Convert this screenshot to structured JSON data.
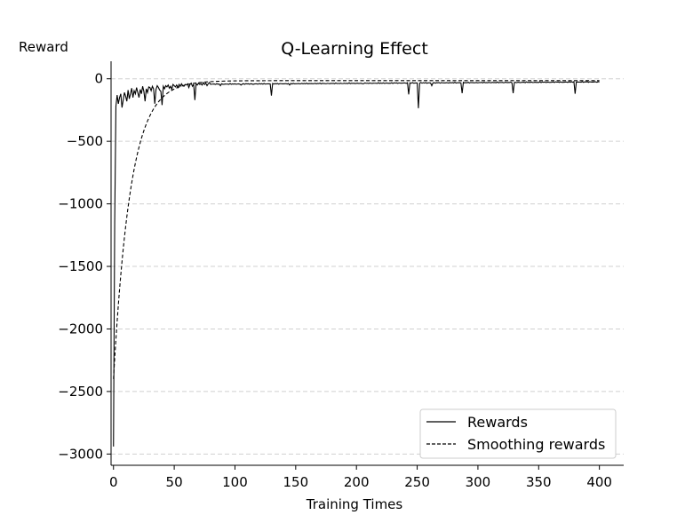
{
  "chart_data": {
    "type": "line",
    "title": "Q-Learning Effect",
    "xlabel": "Training Times",
    "ylabel": "Reward",
    "xlim": [
      -2,
      420
    ],
    "ylim": [
      -3090,
      140
    ],
    "xticks": [
      0,
      50,
      100,
      150,
      200,
      250,
      300,
      350,
      400
    ],
    "yticks": [
      0,
      -500,
      -1000,
      -1500,
      -2000,
      -2500,
      -3000
    ],
    "ytick_labels": [
      "0",
      "−500",
      "−1000",
      "−1500",
      "−2000",
      "−2500",
      "−3000"
    ],
    "grid": "horizontal-dashed",
    "legend_position": "lower-right",
    "series": [
      {
        "name": "Rewards",
        "style": "solid",
        "x_start": 0,
        "values": [
          -2940,
          -1150,
          -220,
          -130,
          -200,
          -150,
          -120,
          -230,
          -170,
          -110,
          -140,
          -180,
          -90,
          -160,
          -120,
          -75,
          -150,
          -95,
          -120,
          -70,
          -110,
          -150,
          -85,
          -120,
          -60,
          -100,
          -180,
          -80,
          -110,
          -65,
          -70,
          -95,
          -60,
          -80,
          -200,
          -85,
          -55,
          -70,
          -90,
          -100,
          -210,
          -60,
          -80,
          -55,
          -65,
          -50,
          -75,
          -60,
          -85,
          -45,
          -55,
          -65,
          -50,
          -70,
          -45,
          -60,
          -40,
          -55,
          -60,
          -45,
          -50,
          -40,
          -70,
          -45,
          -35,
          -60,
          -45,
          -170,
          -40,
          -50,
          -35,
          -45,
          -40,
          -50,
          -30,
          -45,
          -35,
          -55,
          -40,
          -30
        ],
        "tail": {
          "from": 80,
          "to": 400,
          "base": -20,
          "spikes": [
            [
              88,
              -55
            ],
            [
              95,
              -45
            ],
            [
              105,
              -50
            ],
            [
              115,
              -45
            ],
            [
              130,
              -135
            ],
            [
              145,
              -50
            ],
            [
              175,
              -40
            ],
            [
              205,
              -40
            ],
            [
              243,
              -125
            ],
            [
              251,
              -235
            ],
            [
              262,
              -55
            ],
            [
              287,
              -115
            ],
            [
              329,
              -115
            ],
            [
              380,
              -120
            ]
          ]
        }
      },
      {
        "name": "Smoothing rewards",
        "style": "dashed",
        "curve": {
          "x0": 0,
          "x1": 400,
          "start": -2400,
          "end": -15,
          "tau": 14
        }
      }
    ]
  }
}
